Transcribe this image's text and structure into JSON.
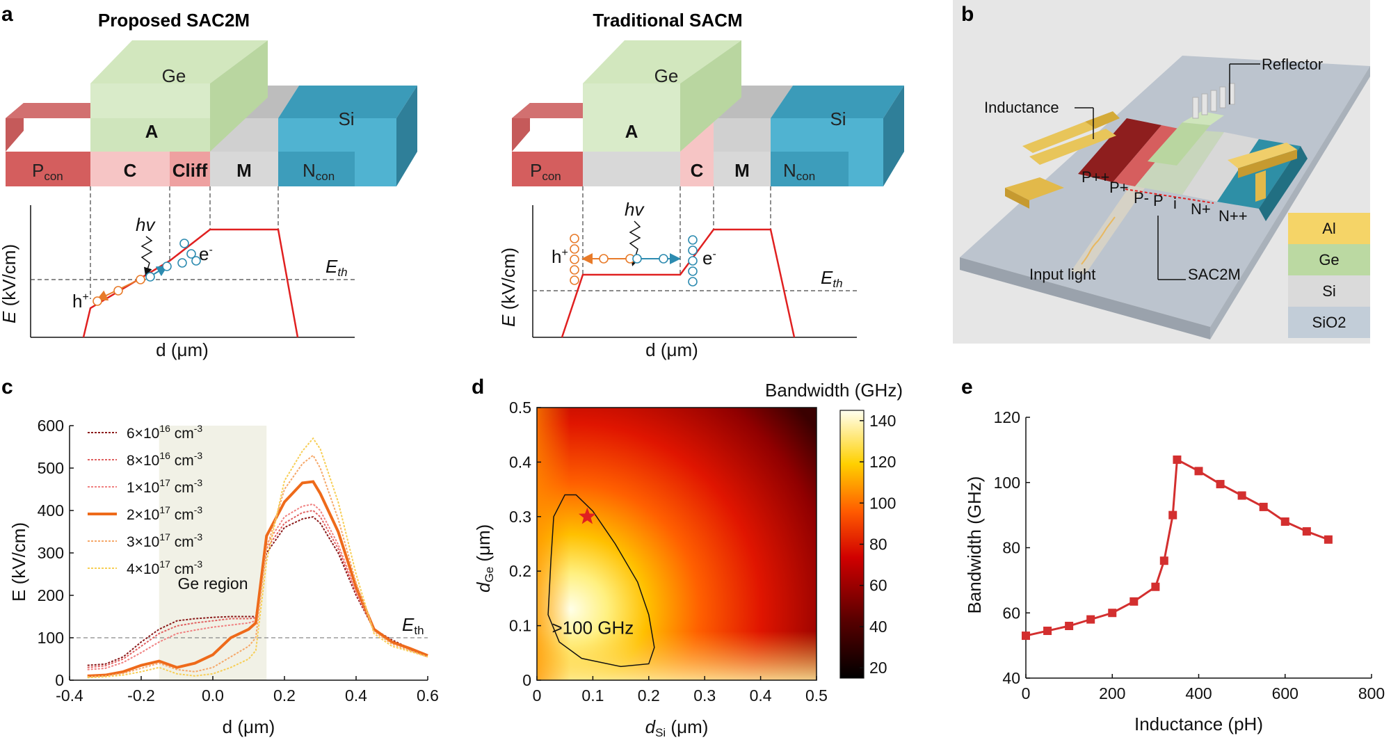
{
  "panels": {
    "a": {
      "label": "a",
      "left": {
        "title": "Proposed SAC2M",
        "blocks": {
          "ge": "Ge",
          "a": "A",
          "c": "C",
          "cliff": "Cliff",
          "m": "M",
          "si": "Si",
          "pcon": "P",
          "ncon": "N",
          "sub": "con"
        },
        "hv": "hv",
        "h": "h",
        "e": "e",
        "eth": "E",
        "eth_sub": "th",
        "xlabel": "d (μm)",
        "ylabel": "E (kV/cm)"
      },
      "right": {
        "title": "Traditional SACM",
        "blocks": {
          "ge": "Ge",
          "a": "A",
          "c": "C",
          "m": "M",
          "si": "Si",
          "pcon": "P",
          "ncon": "N",
          "sub": "con"
        },
        "hv": "hv",
        "h": "h",
        "e": "e",
        "eth": "E",
        "eth_sub": "th",
        "xlabel": "d (μm)",
        "ylabel": "E (kV/cm)"
      }
    },
    "b": {
      "label": "b",
      "labels": {
        "reflector": "Reflector",
        "inductance": "Inductance",
        "input": "Input light",
        "sac2m": "SAC2M",
        "ppp": "P++",
        "pp": "P+",
        "pm": "P-",
        "p": "P",
        "i": "i",
        "np": "N+",
        "npp": "N++"
      },
      "legend": [
        {
          "name": "Al",
          "color": "#F5D467"
        },
        {
          "name": "Ge",
          "color": "#BBD9A2"
        },
        {
          "name": "Si",
          "color": "#DADADA"
        },
        {
          "name": "SiO2",
          "color": "#C2CDD8"
        }
      ]
    },
    "c": {
      "label": "c",
      "region": "Ge region",
      "eth": "E",
      "eth_sub": "th"
    },
    "d": {
      "label": "d",
      "colorbar_title": "Bandwidth (GHz)",
      "annotation": ">100 GHz"
    },
    "e": {
      "label": "e"
    }
  },
  "chart_data": [
    {
      "id": "c",
      "type": "line",
      "title": "",
      "xlabel": "d (μm)",
      "ylabel": "E (kV/cm)",
      "xlim": [
        -0.4,
        0.6
      ],
      "ylim": [
        0,
        600
      ],
      "xticks": [
        "-0.4",
        "-0.2",
        "0.0",
        "0.2",
        "0.4",
        "0.6"
      ],
      "yticks": [
        "0",
        "100",
        "200",
        "300",
        "400",
        "500",
        "600"
      ],
      "threshold": 100,
      "shaded_region": [
        -0.15,
        0.15
      ],
      "x": [
        -0.35,
        -0.3,
        -0.25,
        -0.2,
        -0.15,
        -0.1,
        -0.05,
        0.0,
        0.05,
        0.1,
        0.12,
        0.15,
        0.2,
        0.25,
        0.28,
        0.3,
        0.35,
        0.4,
        0.45,
        0.5,
        0.55,
        0.6
      ],
      "series": [
        {
          "name": "6×10^16 cm^-3",
          "label_base": "6×10",
          "label_exp": "16",
          "color": "#8B1A1A",
          "width": 2,
          "dash": "3,2",
          "values": [
            35,
            38,
            55,
            90,
            120,
            140,
            145,
            148,
            150,
            150,
            150,
            300,
            360,
            380,
            385,
            370,
            300,
            200,
            120,
            95,
            75,
            55
          ]
        },
        {
          "name": "8×10^16 cm^-3",
          "label_base": "8×10",
          "label_exp": "16",
          "color": "#E06060",
          "width": 2,
          "dash": "3,2",
          "values": [
            30,
            34,
            50,
            80,
            110,
            128,
            135,
            140,
            145,
            145,
            147,
            310,
            370,
            395,
            400,
            385,
            310,
            205,
            120,
            92,
            72,
            55
          ]
        },
        {
          "name": "1×10^17 cm^-3",
          "label_base": "1×10",
          "label_exp": "17",
          "color": "#F08080",
          "width": 2,
          "dash": "3,2",
          "values": [
            25,
            28,
            42,
            65,
            90,
            110,
            118,
            125,
            130,
            135,
            140,
            320,
            385,
            410,
            415,
            400,
            320,
            210,
            120,
            90,
            70,
            55
          ]
        },
        {
          "name": "2×10^17 cm^-3",
          "label_base": "2×10",
          "label_exp": "17",
          "color": "#EE6A1A",
          "width": 4,
          "dash": "",
          "values": [
            10,
            12,
            20,
            35,
            45,
            30,
            40,
            60,
            100,
            120,
            135,
            340,
            420,
            465,
            468,
            440,
            350,
            220,
            120,
            90,
            75,
            58
          ]
        },
        {
          "name": "3×10^17 cm^-3",
          "label_base": "3×10",
          "label_exp": "17",
          "color": "#F5A86A",
          "width": 2,
          "dash": "3,2",
          "values": [
            8,
            10,
            16,
            28,
            40,
            25,
            20,
            30,
            55,
            80,
            100,
            310,
            450,
            510,
            530,
            500,
            380,
            230,
            115,
            85,
            70,
            55
          ]
        },
        {
          "name": "4×10^17 cm^-3",
          "label_base": "4×10",
          "label_exp": "17",
          "color": "#F7CE55",
          "width": 2,
          "dash": "3,2",
          "values": [
            6,
            8,
            12,
            20,
            30,
            15,
            10,
            15,
            30,
            50,
            70,
            280,
            470,
            540,
            570,
            545,
            420,
            250,
            110,
            80,
            68,
            55
          ]
        }
      ]
    },
    {
      "id": "d",
      "type": "heatmap",
      "title": "Bandwidth (GHz)",
      "xlabel": "dSi (μm)",
      "ylabel": "dGe (μm)",
      "xlim": [
        0,
        0.5
      ],
      "ylim": [
        0,
        0.5
      ],
      "xticks": [
        "0",
        "0.1",
        "0.2",
        "0.3",
        "0.4",
        "0.5"
      ],
      "yticks": [
        "0",
        "0.1",
        "0.2",
        "0.3",
        "0.4",
        "0.5"
      ],
      "colorbar_range": [
        15,
        145
      ],
      "colorbar_ticks": [
        "20",
        "40",
        "60",
        "80",
        "100",
        "120",
        "140"
      ],
      "peak_point": {
        "x": 0.09,
        "y": 0.3
      },
      "contour_level": 100
    },
    {
      "id": "e",
      "type": "line",
      "title": "",
      "xlabel": "Inductance (pH)",
      "ylabel": "Bandwidth (GHz)",
      "xlim": [
        0,
        800
      ],
      "ylim": [
        40,
        120
      ],
      "xticks": [
        "0",
        "200",
        "400",
        "600",
        "800"
      ],
      "yticks": [
        "40",
        "60",
        "80",
        "100",
        "120"
      ],
      "series": [
        {
          "name": "Bandwidth",
          "color": "#D32F2F",
          "x": [
            0,
            50,
            100,
            150,
            200,
            250,
            300,
            320,
            340,
            350,
            400,
            450,
            500,
            550,
            600,
            650,
            700
          ],
          "values": [
            53,
            54.5,
            56,
            58,
            60,
            63.5,
            68,
            76,
            90,
            107,
            103.5,
            99.5,
            96,
            92.5,
            88,
            85,
            82.5
          ]
        }
      ]
    }
  ]
}
